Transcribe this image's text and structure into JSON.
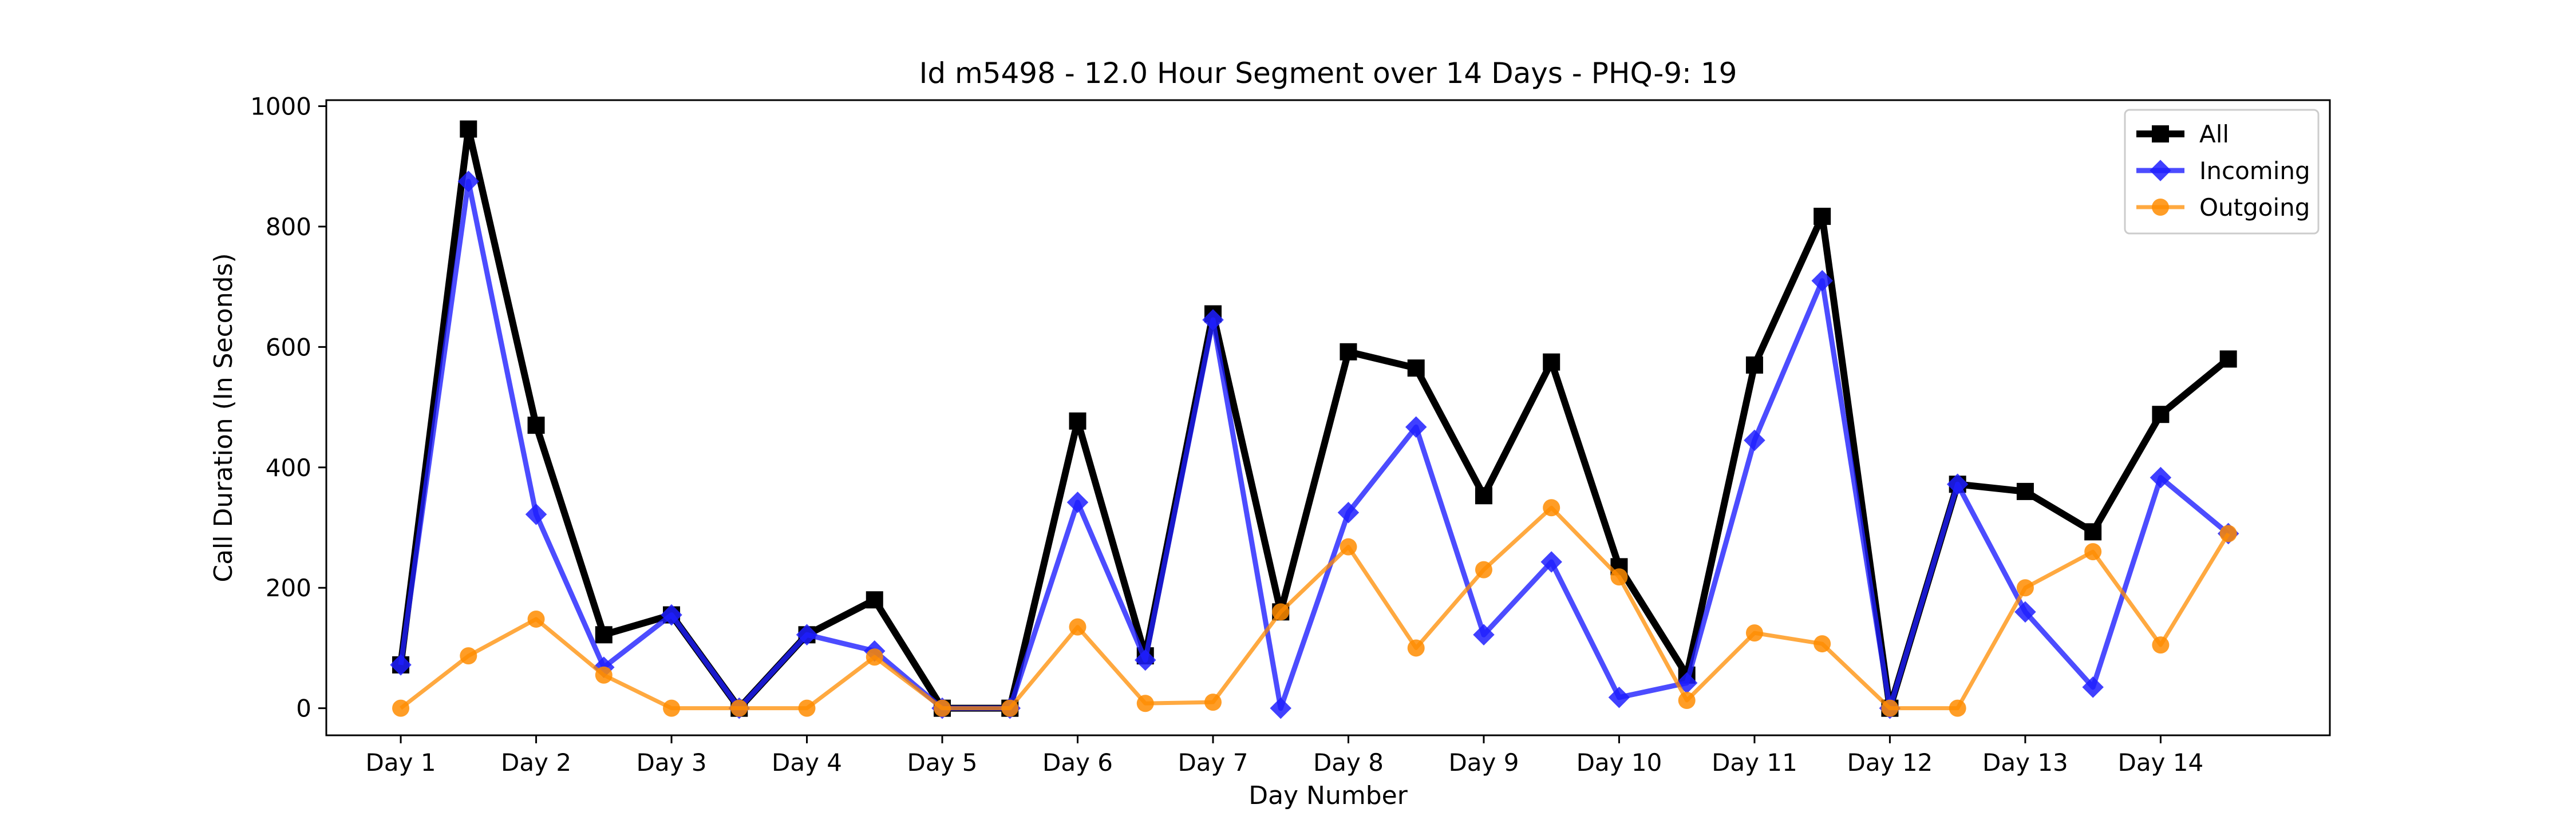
{
  "chart_data": {
    "type": "line",
    "title": "Id m5498 - 12.0 Hour Segment over 14 Days - PHQ-9: 19",
    "xlabel": "Day Number",
    "ylabel": "Call Duration (In Seconds)",
    "ylim": [
      -45,
      1010
    ],
    "yticks": [
      0,
      200,
      400,
      600,
      800,
      1000
    ],
    "xlim": [
      0.45,
      15.25
    ],
    "xtick_values": [
      1,
      2,
      3,
      4,
      5,
      6,
      7,
      8,
      9,
      10,
      11,
      12,
      13,
      14
    ],
    "xtick_labels": [
      "Day 1",
      "Day 2",
      "Day 3",
      "Day 4",
      "Day 5",
      "Day 6",
      "Day 7",
      "Day 8",
      "Day 9",
      "Day 10",
      "Day 11",
      "Day 12",
      "Day 13",
      "Day 14"
    ],
    "grid": false,
    "legend_position": "top-right",
    "x": [
      1,
      1.5,
      2,
      2.5,
      3,
      3.5,
      4,
      4.5,
      5,
      5.5,
      6,
      6.5,
      7,
      7.5,
      8,
      8.5,
      9,
      9.5,
      10,
      10.5,
      11,
      11.5,
      12,
      12.5,
      13,
      13.5,
      14,
      14.5
    ],
    "series": [
      {
        "name": "All",
        "color": "#000000",
        "marker": "square",
        "values": [
          72,
          962,
          470,
          122,
          155,
          0,
          122,
          180,
          0,
          0,
          477,
          87,
          655,
          160,
          592,
          565,
          353,
          575,
          235,
          55,
          570,
          817,
          0,
          372,
          360,
          293,
          488,
          580
        ]
      },
      {
        "name": "Incoming",
        "color": "#1f1fff",
        "marker": "diamond",
        "values": [
          72,
          875,
          322,
          68,
          155,
          0,
          122,
          95,
          0,
          0,
          342,
          80,
          645,
          0,
          325,
          467,
          122,
          243,
          18,
          42,
          445,
          710,
          0,
          372,
          160,
          35,
          383,
          290
        ]
      },
      {
        "name": "Outgoing",
        "color": "#ff8c00",
        "marker": "circle",
        "values": [
          0,
          87,
          148,
          55,
          0,
          0,
          0,
          85,
          0,
          0,
          135,
          8,
          10,
          160,
          268,
          100,
          230,
          333,
          218,
          13,
          125,
          107,
          0,
          0,
          200,
          260,
          105,
          290
        ]
      }
    ]
  }
}
